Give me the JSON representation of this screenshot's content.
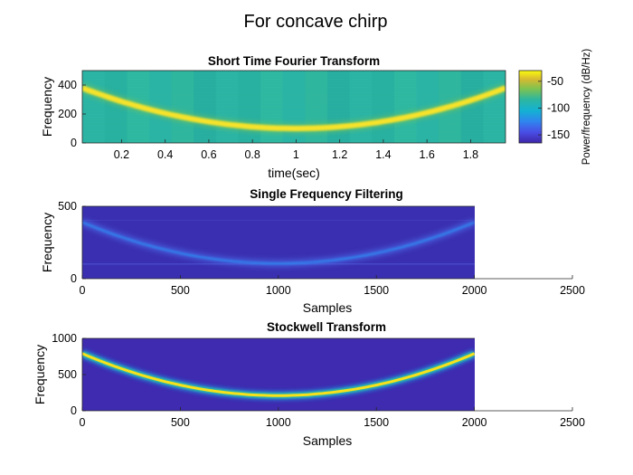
{
  "figure": {
    "title": "For concave chirp"
  },
  "chart_data": [
    {
      "type": "heatmap",
      "title": "Short Time Fourier Transform",
      "xlabel": "time(sec)",
      "ylabel": "Frequency",
      "xlim": [
        0.02,
        1.96
      ],
      "ylim": [
        0,
        500
      ],
      "xticks": [
        "0.2",
        "0.4",
        "0.6",
        "0.8",
        "1",
        "1.2",
        "1.4",
        "1.6",
        "1.8"
      ],
      "yticks": [
        "0",
        "200",
        "400"
      ],
      "ridge": {
        "x": [
          0.02,
          0.5,
          1.0,
          1.5,
          1.96
        ],
        "y": [
          380,
          165,
          100,
          165,
          380
        ]
      },
      "colorbar": {
        "label": "Power/frequency (dB/Hz)",
        "ticks": [
          "-50",
          "-100",
          "-150"
        ],
        "range": [
          -165,
          -30
        ]
      },
      "colors": {
        "background": "#2db6a0",
        "ridge": "#f7e32a",
        "low": "#3e26a8"
      }
    },
    {
      "type": "heatmap",
      "title": "Single Frequency Filtering",
      "xlabel": "Samples",
      "ylabel": "Frequency",
      "xlim": [
        0,
        2500
      ],
      "ylim": [
        0,
        500
      ],
      "data_xmax": 2000,
      "xticks": [
        "0",
        "500",
        "1000",
        "1500",
        "2000",
        "2500"
      ],
      "yticks": [
        "0",
        "500"
      ],
      "ridge": {
        "x": [
          0,
          1000,
          2000
        ],
        "y": [
          390,
          105,
          390
        ]
      },
      "colors": {
        "background": "#3a2fb0",
        "ridge": "#2f86ee"
      }
    },
    {
      "type": "heatmap",
      "title": "Stockwell Transform",
      "xlabel": "Samples",
      "ylabel": "Frequency",
      "xlim": [
        0,
        2500
      ],
      "ylim": [
        0,
        1000
      ],
      "data_xmax": 2000,
      "xticks": [
        "0",
        "500",
        "1000",
        "1500",
        "2000",
        "2500"
      ],
      "yticks": [
        "0",
        "500",
        "1000"
      ],
      "ridge": {
        "x": [
          0,
          1000,
          2000
        ],
        "y": [
          790,
          210,
          790
        ]
      },
      "colors": {
        "background": "#3e2bb0",
        "ridge": "#f6e11c"
      }
    }
  ]
}
